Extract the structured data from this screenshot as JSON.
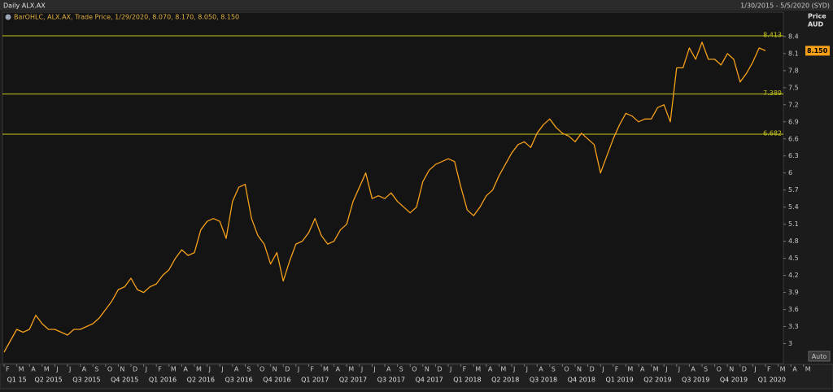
{
  "chart_data": {
    "type": "line",
    "title": "Daily ALX.AX",
    "subtitle": "1/30/2015 - 5/5/2020 (SYD)",
    "y_axis_label": "Price",
    "y_axis_unit": "AUD",
    "scale_button": "Auto",
    "x": [
      0,
      0.5,
      1,
      1.5,
      2,
      2.5,
      3,
      3.5,
      4,
      4.5,
      5,
      5.5,
      6,
      6.5,
      7,
      7.5,
      8,
      8.5,
      9,
      9.5,
      10,
      10.5,
      11,
      11.5,
      12,
      12.5,
      13,
      13.5,
      14,
      14.5,
      15,
      15.5,
      16,
      16.5,
      17,
      17.5,
      18,
      18.5,
      19,
      19.5,
      20,
      20.5,
      21,
      21.5,
      22,
      22.5,
      23,
      23.5,
      24,
      24.5,
      25,
      25.5,
      26,
      26.5,
      27,
      27.5,
      28,
      28.5,
      29,
      29.5,
      30,
      30.5,
      31,
      31.5,
      32,
      32.5,
      33,
      33.5,
      34,
      34.5,
      35,
      35.5,
      36,
      36.5,
      37,
      37.5,
      38,
      38.5,
      39,
      39.5,
      40,
      40.5,
      41,
      41.5,
      42,
      42.5,
      43,
      43.5,
      44,
      44.5,
      45,
      45.5,
      46,
      46.5,
      47,
      47.5,
      48,
      48.5,
      49,
      49.5,
      50,
      50.5,
      51,
      51.5,
      52,
      52.5,
      53,
      53.5,
      54,
      54.5,
      55,
      55.5,
      56,
      56.5,
      57,
      57.5,
      58,
      58.5,
      59,
      59.5,
      60
    ],
    "series": [
      {
        "name": "BarOHLC, ALX.AX, Trade Price, 1/29/2020, 8.070, 8.170, 8.050, 8.150",
        "color": "#f5a01a",
        "values": [
          2.85,
          3.05,
          3.25,
          3.2,
          3.25,
          3.5,
          3.35,
          3.25,
          3.25,
          3.2,
          3.15,
          3.25,
          3.25,
          3.3,
          3.35,
          3.45,
          3.6,
          3.75,
          3.95,
          4.0,
          4.15,
          3.95,
          3.9,
          4.0,
          4.05,
          4.2,
          4.3,
          4.5,
          4.65,
          4.55,
          4.6,
          5.0,
          5.15,
          5.2,
          5.15,
          4.85,
          5.5,
          5.75,
          5.8,
          5.2,
          4.9,
          4.75,
          4.4,
          4.6,
          4.1,
          4.45,
          4.75,
          4.8,
          4.95,
          5.2,
          4.9,
          4.75,
          4.8,
          5.0,
          5.1,
          5.5,
          5.75,
          6.0,
          5.55,
          5.6,
          5.55,
          5.65,
          5.5,
          5.4,
          5.3,
          5.4,
          5.85,
          6.05,
          6.15,
          6.2,
          6.25,
          6.2,
          5.75,
          5.35,
          5.25,
          5.4,
          5.6,
          5.7,
          5.95,
          6.15,
          6.35,
          6.5,
          6.55,
          6.45,
          6.7,
          6.85,
          6.95,
          6.8,
          6.7,
          6.65,
          6.55,
          6.7,
          6.6,
          6.5,
          6.0,
          6.3,
          6.6,
          6.85,
          7.05,
          7.0,
          6.9,
          6.95,
          6.95,
          7.15,
          7.2,
          6.9,
          7.85,
          7.85,
          8.2,
          8.0,
          8.3,
          8.0,
          8.0,
          7.9,
          8.1,
          8.0,
          7.6,
          7.75,
          7.95,
          8.2,
          8.15
        ]
      }
    ],
    "xlim": [
      -0.13,
      61.41
    ],
    "xticks": [
      {
        "value": 0,
        "label": "F"
      },
      {
        "value": 1,
        "label": "M"
      },
      {
        "value": 2,
        "label": "A"
      },
      {
        "value": 3,
        "label": "M"
      },
      {
        "value": 4,
        "label": "J"
      },
      {
        "value": 5,
        "label": "J"
      },
      {
        "value": 6,
        "label": "A"
      },
      {
        "value": 7,
        "label": "S"
      },
      {
        "value": 8,
        "label": "O"
      },
      {
        "value": 9,
        "label": "N"
      },
      {
        "value": 10,
        "label": "D"
      },
      {
        "value": 11,
        "label": "J"
      },
      {
        "value": 12,
        "label": "F"
      },
      {
        "value": 13,
        "label": "M"
      },
      {
        "value": 14,
        "label": "A"
      },
      {
        "value": 15,
        "label": "M"
      },
      {
        "value": 16,
        "label": "J"
      },
      {
        "value": 17,
        "label": "J"
      },
      {
        "value": 18,
        "label": "A"
      },
      {
        "value": 19,
        "label": "S"
      },
      {
        "value": 20,
        "label": "O"
      },
      {
        "value": 21,
        "label": "N"
      },
      {
        "value": 22,
        "label": "D"
      },
      {
        "value": 23,
        "label": "J"
      },
      {
        "value": 24,
        "label": "F"
      },
      {
        "value": 25,
        "label": "M"
      },
      {
        "value": 26,
        "label": "A"
      },
      {
        "value": 27,
        "label": "M"
      },
      {
        "value": 28,
        "label": "J"
      },
      {
        "value": 29,
        "label": "J"
      },
      {
        "value": 30,
        "label": "A"
      },
      {
        "value": 31,
        "label": "S"
      },
      {
        "value": 32,
        "label": "O"
      },
      {
        "value": 33,
        "label": "N"
      },
      {
        "value": 34,
        "label": "D"
      },
      {
        "value": 35,
        "label": "J"
      },
      {
        "value": 36,
        "label": "F"
      },
      {
        "value": 37,
        "label": "M"
      },
      {
        "value": 38,
        "label": "A"
      },
      {
        "value": 39,
        "label": "M"
      },
      {
        "value": 40,
        "label": "J"
      },
      {
        "value": 41,
        "label": "J"
      },
      {
        "value": 42,
        "label": "A"
      },
      {
        "value": 43,
        "label": "S"
      },
      {
        "value": 44,
        "label": "O"
      },
      {
        "value": 45,
        "label": "N"
      },
      {
        "value": 46,
        "label": "D"
      },
      {
        "value": 47,
        "label": "J"
      },
      {
        "value": 48,
        "label": "F"
      },
      {
        "value": 49,
        "label": "M"
      },
      {
        "value": 50,
        "label": "A"
      },
      {
        "value": 51,
        "label": "M"
      },
      {
        "value": 52,
        "label": "J"
      },
      {
        "value": 53,
        "label": "J"
      },
      {
        "value": 54,
        "label": "A"
      },
      {
        "value": 55,
        "label": "S"
      },
      {
        "value": 56,
        "label": "O"
      },
      {
        "value": 57,
        "label": "N"
      },
      {
        "value": 58,
        "label": "D"
      },
      {
        "value": 59,
        "label": "J"
      },
      {
        "value": 60,
        "label": "F"
      },
      {
        "value": 61,
        "label": "M"
      },
      {
        "value": 62,
        "label": "A"
      },
      {
        "value": 63,
        "label": "M"
      }
    ],
    "quarter_ticks": [
      {
        "value": 1,
        "label": "Q1 15"
      },
      {
        "value": 3.5,
        "label": "Q2 2015"
      },
      {
        "value": 6.5,
        "label": "Q3 2015"
      },
      {
        "value": 9.5,
        "label": "Q4 2015"
      },
      {
        "value": 12.5,
        "label": "Q1 2016"
      },
      {
        "value": 15.5,
        "label": "Q2 2016"
      },
      {
        "value": 18.5,
        "label": "Q3 2016"
      },
      {
        "value": 21.5,
        "label": "Q4 2016"
      },
      {
        "value": 24.5,
        "label": "Q1 2017"
      },
      {
        "value": 27.5,
        "label": "Q2 2017"
      },
      {
        "value": 30.5,
        "label": "Q3 2017"
      },
      {
        "value": 33.5,
        "label": "Q4 2017"
      },
      {
        "value": 36.5,
        "label": "Q1 2018"
      },
      {
        "value": 39.5,
        "label": "Q2 2018"
      },
      {
        "value": 42.5,
        "label": "Q3 2018"
      },
      {
        "value": 45.5,
        "label": "Q4 2018"
      },
      {
        "value": 48.5,
        "label": "Q1 2019"
      },
      {
        "value": 51.5,
        "label": "Q2 2019"
      },
      {
        "value": 54.5,
        "label": "Q3 2019"
      },
      {
        "value": 57.5,
        "label": "Q4 2019"
      },
      {
        "value": 60.5,
        "label": "Q1 2020"
      }
    ],
    "ylim": [
      2.75,
      8.57
    ],
    "yticks": [
      3,
      3.3,
      3.6,
      3.9,
      4.2,
      4.5,
      4.8,
      5.1,
      5.4,
      5.7,
      6,
      6.3,
      6.6,
      6.9,
      7.2,
      7.5,
      7.8,
      8.1,
      8.4
    ],
    "hlines": [
      8.413,
      7.389,
      6.682
    ],
    "hline_color": "#c8c81e",
    "last_price": 8.15,
    "last_price_label": "8.150",
    "grid": false
  }
}
